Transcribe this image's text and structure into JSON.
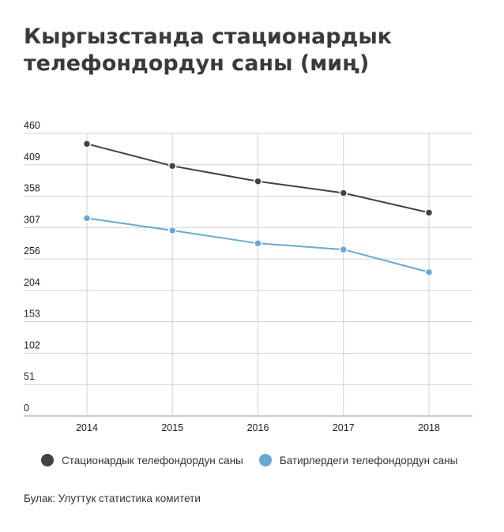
{
  "header": {
    "title_line1": "Кыргызстанда стационардык",
    "title_line2": "телефондордун саны (миң)"
  },
  "chart_data": {
    "type": "line",
    "title": "Кыргызстанда стационардык телефондордун саны (миң)",
    "x": [
      "2014",
      "2015",
      "2016",
      "2017",
      "2018"
    ],
    "y_ticks": [
      "0",
      "51",
      "102",
      "153",
      "204",
      "256",
      "307",
      "358",
      "409",
      "460"
    ],
    "ylim": [
      0,
      460
    ],
    "grid": true,
    "legend_position": "bottom",
    "series": [
      {
        "name": "Стационардык телефондордун саны",
        "values": [
          443,
          407,
          382,
          363,
          331
        ],
        "color": "#424242"
      },
      {
        "name": "Батирлердеги телефондордун саны",
        "values": [
          322,
          302,
          281,
          271,
          234
        ],
        "color": "#6aa8d2"
      }
    ]
  },
  "footer": {
    "source": "Булак: Улуттук статистика комитети"
  }
}
